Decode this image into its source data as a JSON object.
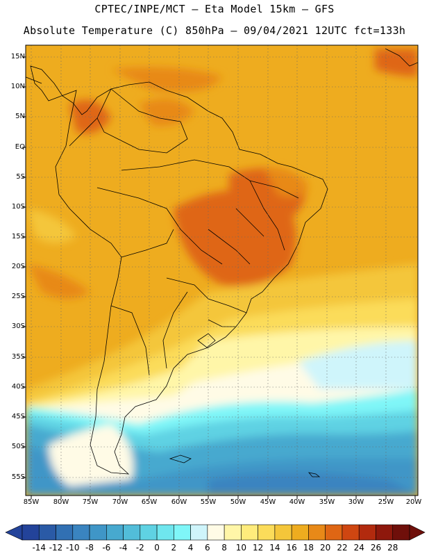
{
  "header": {
    "line1": "CPTEC/INPE/MCT –  Eta Model 15km – GFS",
    "line2": "Absolute Temperature (C) 850hPa – 09/04/2021 12UTC fct=133h"
  },
  "axes": {
    "lat_labels": [
      "15N",
      "10N",
      "5N",
      "EQ",
      "5S",
      "10S",
      "15S",
      "20S",
      "25S",
      "30S",
      "35S",
      "40S",
      "45S",
      "50S",
      "55S"
    ],
    "lon_labels": [
      "85W",
      "80W",
      "75W",
      "70W",
      "65W",
      "60W",
      "55W",
      "50W",
      "45W",
      "40W",
      "35W",
      "30W",
      "25W",
      "20W"
    ]
  },
  "colorbar": {
    "labels": [
      "-14",
      "-12",
      "-10",
      "-8",
      "-6",
      "-4",
      "-2",
      "0",
      "2",
      "4",
      "6",
      "8",
      "10",
      "12",
      "14",
      "16",
      "18",
      "20",
      "22",
      "24",
      "26",
      "28"
    ],
    "colors": [
      "#23439a",
      "#2a5aa6",
      "#3170b3",
      "#3a84c0",
      "#3f96c7",
      "#47a9cf",
      "#52bdd9",
      "#5fd2e3",
      "#6fe6ee",
      "#7ff6f8",
      "#cff5fb",
      "#fffbe6",
      "#fff6a8",
      "#ffec7c",
      "#fbdc5a",
      "#f4c63a",
      "#eeac1f",
      "#e88918",
      "#df6614",
      "#cf4611",
      "#b22a0e",
      "#8e180c",
      "#6f0f0a"
    ]
  }
}
